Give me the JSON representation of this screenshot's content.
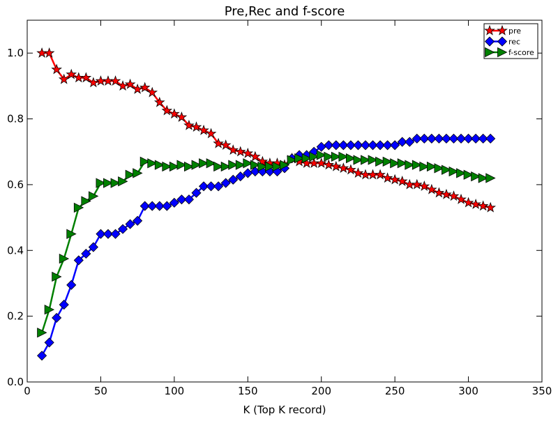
{
  "chart_data": {
    "type": "line",
    "title": "Pre,Rec and f-score",
    "xlabel": "K (Top K record)",
    "ylabel": "",
    "xlim": [
      0,
      350
    ],
    "ylim": [
      0.0,
      1.1
    ],
    "xticks": [
      0,
      50,
      100,
      150,
      200,
      250,
      300,
      350
    ],
    "yticks": [
      0.0,
      0.2,
      0.4,
      0.6,
      0.8,
      1.0
    ],
    "xtick_labels": [
      "0",
      "50",
      "100",
      "150",
      "200",
      "250",
      "300",
      "350"
    ],
    "ytick_labels": [
      "0.0",
      "0.2",
      "0.4",
      "0.6",
      "0.8",
      "1.0"
    ],
    "grid": false,
    "legend_position": "top-right",
    "x": [
      10,
      15,
      20,
      25,
      30,
      35,
      40,
      45,
      50,
      55,
      60,
      65,
      70,
      75,
      80,
      85,
      90,
      95,
      100,
      105,
      110,
      115,
      120,
      125,
      130,
      135,
      140,
      145,
      150,
      155,
      160,
      165,
      170,
      175,
      180,
      185,
      190,
      195,
      200,
      205,
      210,
      215,
      220,
      225,
      230,
      235,
      240,
      245,
      250,
      255,
      260,
      265,
      270,
      275,
      280,
      285,
      290,
      295,
      300,
      305,
      310,
      315
    ],
    "series": [
      {
        "name": "pre",
        "color": "#ff0000",
        "marker": "star",
        "values": [
          1.0,
          1.0,
          0.95,
          0.92,
          0.935,
          0.925,
          0.925,
          0.91,
          0.915,
          0.915,
          0.915,
          0.9,
          0.905,
          0.89,
          0.895,
          0.88,
          0.85,
          0.825,
          0.815,
          0.805,
          0.78,
          0.775,
          0.765,
          0.755,
          0.725,
          0.72,
          0.705,
          0.7,
          0.695,
          0.685,
          0.67,
          0.665,
          0.665,
          0.66,
          0.68,
          0.67,
          0.665,
          0.665,
          0.665,
          0.66,
          0.655,
          0.65,
          0.645,
          0.635,
          0.63,
          0.63,
          0.63,
          0.62,
          0.615,
          0.61,
          0.6,
          0.6,
          0.595,
          0.585,
          0.575,
          0.57,
          0.565,
          0.555,
          0.545,
          0.54,
          0.535,
          0.53
        ]
      },
      {
        "name": "rec",
        "color": "#0000ff",
        "marker": "diamond",
        "values": [
          0.08,
          0.12,
          0.195,
          0.235,
          0.295,
          0.37,
          0.39,
          0.41,
          0.45,
          0.45,
          0.45,
          0.465,
          0.48,
          0.49,
          0.535,
          0.535,
          0.535,
          0.535,
          0.545,
          0.555,
          0.555,
          0.575,
          0.595,
          0.595,
          0.595,
          0.605,
          0.615,
          0.625,
          0.635,
          0.64,
          0.64,
          0.64,
          0.64,
          0.65,
          0.68,
          0.69,
          0.69,
          0.7,
          0.715,
          0.72,
          0.72,
          0.72,
          0.72,
          0.72,
          0.72,
          0.72,
          0.72,
          0.72,
          0.72,
          0.73,
          0.73,
          0.74,
          0.74,
          0.74,
          0.74,
          0.74,
          0.74,
          0.74,
          0.74,
          0.74,
          0.74,
          0.74
        ]
      },
      {
        "name": "f-score",
        "color": "#008000",
        "marker": "triangle-right",
        "values": [
          0.15,
          0.22,
          0.32,
          0.375,
          0.45,
          0.53,
          0.55,
          0.565,
          0.605,
          0.605,
          0.605,
          0.61,
          0.63,
          0.635,
          0.67,
          0.665,
          0.66,
          0.655,
          0.655,
          0.66,
          0.655,
          0.66,
          0.665,
          0.665,
          0.655,
          0.655,
          0.66,
          0.66,
          0.665,
          0.66,
          0.655,
          0.655,
          0.655,
          0.66,
          0.675,
          0.68,
          0.68,
          0.685,
          0.69,
          0.685,
          0.685,
          0.685,
          0.68,
          0.675,
          0.675,
          0.675,
          0.67,
          0.67,
          0.665,
          0.665,
          0.66,
          0.66,
          0.655,
          0.655,
          0.65,
          0.645,
          0.64,
          0.635,
          0.63,
          0.625,
          0.62,
          0.62
        ]
      }
    ]
  }
}
